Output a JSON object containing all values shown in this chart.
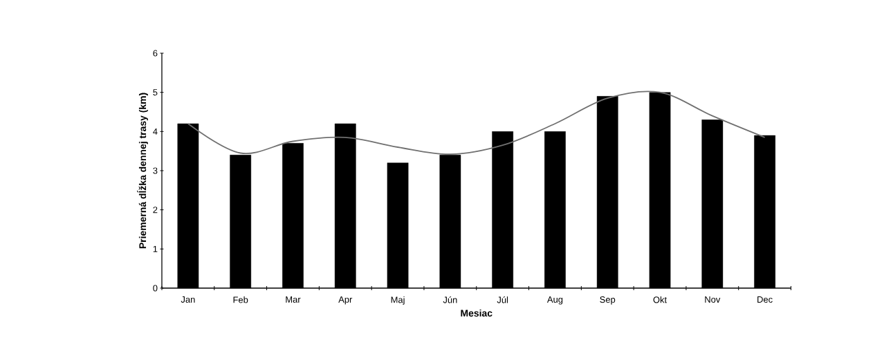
{
  "chart_data": {
    "type": "bar",
    "xlabel": "Mesiac",
    "ylabel": "Priemerná dĺžka dennej trasy (km)",
    "categories": [
      "Jan",
      "Feb",
      "Mar",
      "Apr",
      "Maj",
      "Jún",
      "Júl",
      "Aug",
      "Sep",
      "Okt",
      "Nov",
      "Dec"
    ],
    "series": [
      {
        "color": "#000000",
        "values": [
          4.2,
          3.4,
          3.7,
          4.2,
          3.2,
          3.4,
          4.0,
          4.0,
          4.9,
          5.0,
          4.3,
          3.9
        ]
      },
      {
        "type": "line",
        "color": "#707070",
        "values": [
          4.2,
          3.45,
          3.75,
          3.85,
          3.6,
          3.42,
          3.65,
          4.2,
          4.85,
          5.0,
          4.4,
          3.85
        ]
      }
    ],
    "ylim": [
      0,
      6
    ],
    "yticks": [
      0,
      1,
      2,
      3,
      4,
      5,
      6
    ]
  }
}
